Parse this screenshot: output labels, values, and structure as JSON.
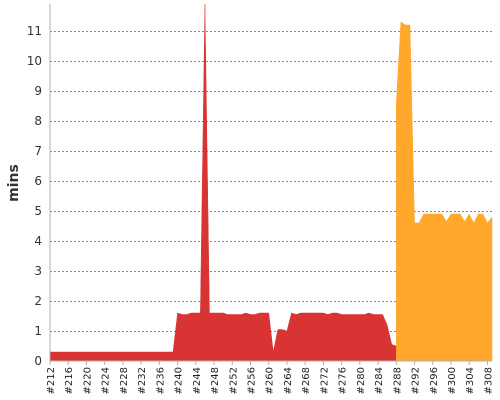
{
  "chart_data": {
    "type": "area",
    "ylabel": "mins",
    "xlabel": "",
    "title": "",
    "ylim": [
      0,
      11.9
    ],
    "y_ticks": [
      0,
      1,
      2,
      3,
      4,
      5,
      6,
      7,
      8,
      9,
      10,
      11
    ],
    "x_tick_labels": [
      "#212",
      "#216",
      "#220",
      "#224",
      "#228",
      "#232",
      "#236",
      "#240",
      "#244",
      "#248",
      "#252",
      "#256",
      "#260",
      "#264",
      "#268",
      "#272",
      "#276",
      "#280",
      "#284",
      "#288",
      "#292",
      "#296",
      "#300",
      "#304",
      "#308"
    ],
    "grid": true,
    "series": [
      {
        "color": "#d93434",
        "x": [
          212,
          213,
          214,
          215,
          216,
          217,
          218,
          219,
          220,
          221,
          222,
          223,
          224,
          225,
          226,
          227,
          228,
          229,
          230,
          231,
          232,
          233,
          234,
          235,
          236,
          237,
          238,
          239,
          240,
          241,
          242,
          243,
          244,
          245,
          246,
          247,
          248,
          249,
          250,
          251,
          252,
          253,
          254,
          255,
          256,
          257,
          258,
          259,
          260,
          261,
          262,
          263,
          264,
          265,
          266,
          267,
          268,
          269,
          270,
          271,
          272,
          273,
          274,
          275,
          276,
          277,
          278,
          279,
          280,
          281,
          282,
          283,
          284,
          285,
          286,
          287,
          288
        ],
        "values": [
          0.3,
          0.3,
          0.3,
          0.3,
          0.3,
          0.3,
          0.3,
          0.3,
          0.3,
          0.3,
          0.3,
          0.3,
          0.3,
          0.3,
          0.3,
          0.3,
          0.3,
          0.3,
          0.3,
          0.3,
          0.3,
          0.3,
          0.3,
          0.3,
          0.3,
          0.3,
          0.3,
          0.3,
          1.6,
          1.55,
          1.55,
          1.6,
          1.6,
          1.6,
          11.9,
          1.6,
          1.6,
          1.6,
          1.6,
          1.55,
          1.55,
          1.55,
          1.55,
          1.6,
          1.55,
          1.55,
          1.6,
          1.6,
          1.6,
          0.3,
          1.05,
          1.05,
          1.0,
          1.6,
          1.55,
          1.6,
          1.6,
          1.6,
          1.6,
          1.6,
          1.6,
          1.55,
          1.6,
          1.6,
          1.55,
          1.55,
          1.55,
          1.55,
          1.55,
          1.55,
          1.6,
          1.55,
          1.55,
          1.55,
          1.2,
          0.55,
          0.5
        ]
      },
      {
        "color": "#ffa82c",
        "x": [
          288,
          289,
          290,
          291,
          292,
          293,
          294,
          295,
          296,
          297,
          298,
          299,
          300,
          301,
          302,
          303,
          304,
          305,
          306,
          307,
          308,
          309
        ],
        "values": [
          8.6,
          11.3,
          11.2,
          11.2,
          4.6,
          4.6,
          4.9,
          4.9,
          4.9,
          4.9,
          4.9,
          4.65,
          4.9,
          4.9,
          4.9,
          4.65,
          4.9,
          4.6,
          4.9,
          4.9,
          4.6,
          4.8
        ]
      }
    ]
  }
}
